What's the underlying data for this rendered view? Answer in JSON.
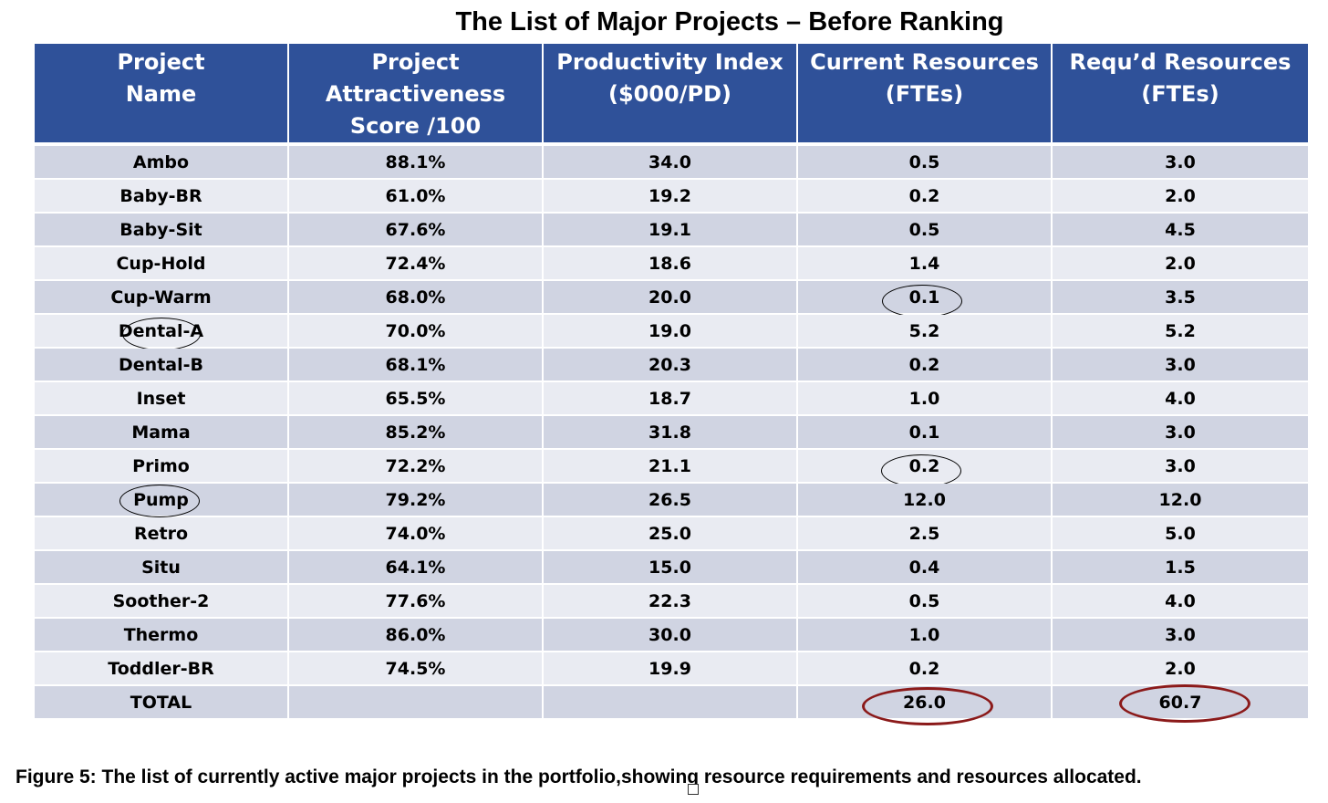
{
  "title": "The List of Major Projects – Before Ranking",
  "table": {
    "headers": [
      [
        "Project",
        "Name"
      ],
      [
        "Project Attractiveness",
        "Score /100"
      ],
      [
        "Productivity Index",
        "($000/PD)"
      ],
      [
        "Current Resources",
        "(FTEs)"
      ],
      [
        "Requ’d Resources",
        "(FTEs)"
      ]
    ],
    "rows": [
      [
        "Ambo",
        "88.1%",
        "34.0",
        "0.5",
        "3.0"
      ],
      [
        "Baby-BR",
        "61.0%",
        "19.2",
        "0.2",
        "2.0"
      ],
      [
        "Baby-Sit",
        "67.6%",
        "19.1",
        "0.5",
        "4.5"
      ],
      [
        "Cup-Hold",
        "72.4%",
        "18.6",
        "1.4",
        "2.0"
      ],
      [
        "Cup-Warm",
        "68.0%",
        "20.0",
        "0.1",
        "3.5"
      ],
      [
        "Dental-A",
        "70.0%",
        "19.0",
        "5.2",
        "5.2"
      ],
      [
        "Dental-B",
        "68.1%",
        "20.3",
        "0.2",
        "3.0"
      ],
      [
        "Inset",
        "65.5%",
        "18.7",
        "1.0",
        "4.0"
      ],
      [
        "Mama",
        "85.2%",
        "31.8",
        "0.1",
        "3.0"
      ],
      [
        "Primo",
        "72.2%",
        "21.1",
        "0.2",
        "3.0"
      ],
      [
        "Pump",
        "79.2%",
        "26.5",
        "12.0",
        "12.0"
      ],
      [
        "Retro",
        "74.0%",
        "25.0",
        "2.5",
        "5.0"
      ],
      [
        "Situ",
        "64.1%",
        "15.0",
        "0.4",
        "1.5"
      ],
      [
        "Soother-2",
        "77.6%",
        "22.3",
        "0.5",
        "4.0"
      ],
      [
        "Thermo",
        "86.0%",
        "30.0",
        "1.0",
        "3.0"
      ],
      [
        "Toddler-BR",
        "74.5%",
        "19.9",
        "0.2",
        "2.0"
      ]
    ],
    "total": [
      "TOTAL",
      "",
      "",
      "26.0",
      "60.7"
    ]
  },
  "caption": "Figure 5: The list of currently active major projects in the portfolio,showing resource requirements and resources allocated.",
  "colors": {
    "header_bg": "#2f5199",
    "row_dark": "#d0d4e2",
    "row_light": "#e9ebf2",
    "highlight_circle": "#000000",
    "total_circle": "#8b1a1a"
  }
}
